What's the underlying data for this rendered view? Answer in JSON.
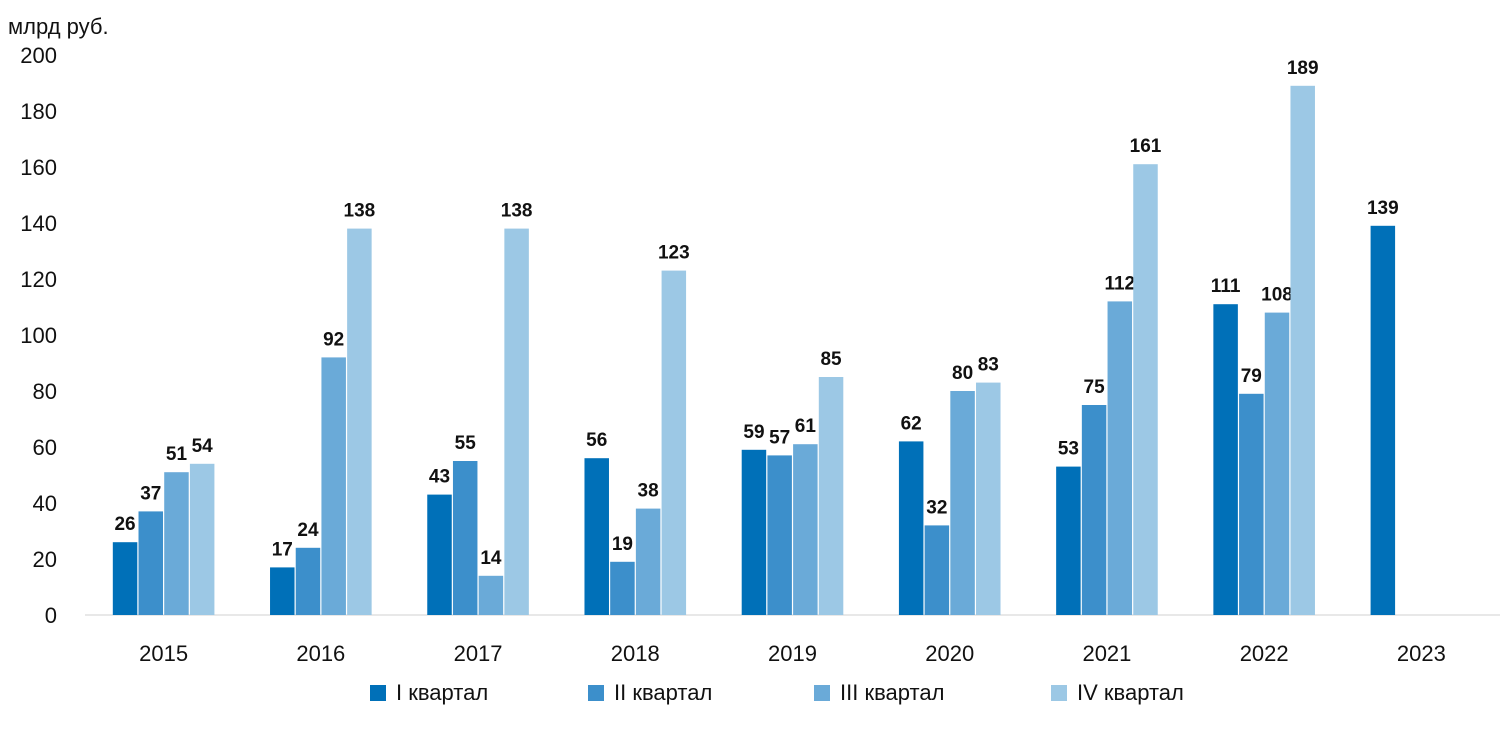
{
  "chart_data": {
    "type": "bar",
    "unit_label": "млрд руб.",
    "categories": [
      "2015",
      "2016",
      "2017",
      "2018",
      "2019",
      "2020",
      "2021",
      "2022",
      "2023"
    ],
    "ylim": [
      0,
      200
    ],
    "yticks": [
      "0",
      "20",
      "40",
      "60",
      "80",
      "100",
      "120",
      "140",
      "160",
      "180",
      "200"
    ],
    "grid": false,
    "legend_position": "bottom",
    "series": [
      {
        "name": "I квартал",
        "color": "#0070b8",
        "values": [
          26,
          17,
          43,
          56,
          59,
          62,
          53,
          111,
          139
        ]
      },
      {
        "name": "II квартал",
        "color": "#3c8fcb",
        "values": [
          37,
          24,
          55,
          19,
          57,
          32,
          75,
          79,
          null
        ]
      },
      {
        "name": "III квартал",
        "color": "#6aaad8",
        "values": [
          51,
          92,
          14,
          38,
          61,
          80,
          112,
          108,
          null
        ]
      },
      {
        "name": "IV квартал",
        "color": "#9cc8e5",
        "values": [
          54,
          138,
          138,
          123,
          85,
          83,
          161,
          189,
          null
        ]
      }
    ],
    "data_labels": [
      [
        "26",
        "17",
        "43",
        "56",
        "59",
        "62",
        "53",
        "111",
        "139"
      ],
      [
        "37",
        "24",
        "55",
        "19",
        "57",
        "32",
        "75",
        "79",
        ""
      ],
      [
        "51",
        "92",
        "14",
        "38",
        "61",
        "80",
        "112",
        "108",
        ""
      ],
      [
        "54",
        "138",
        "138",
        "123",
        "85",
        "83",
        "161",
        "189",
        ""
      ]
    ]
  }
}
